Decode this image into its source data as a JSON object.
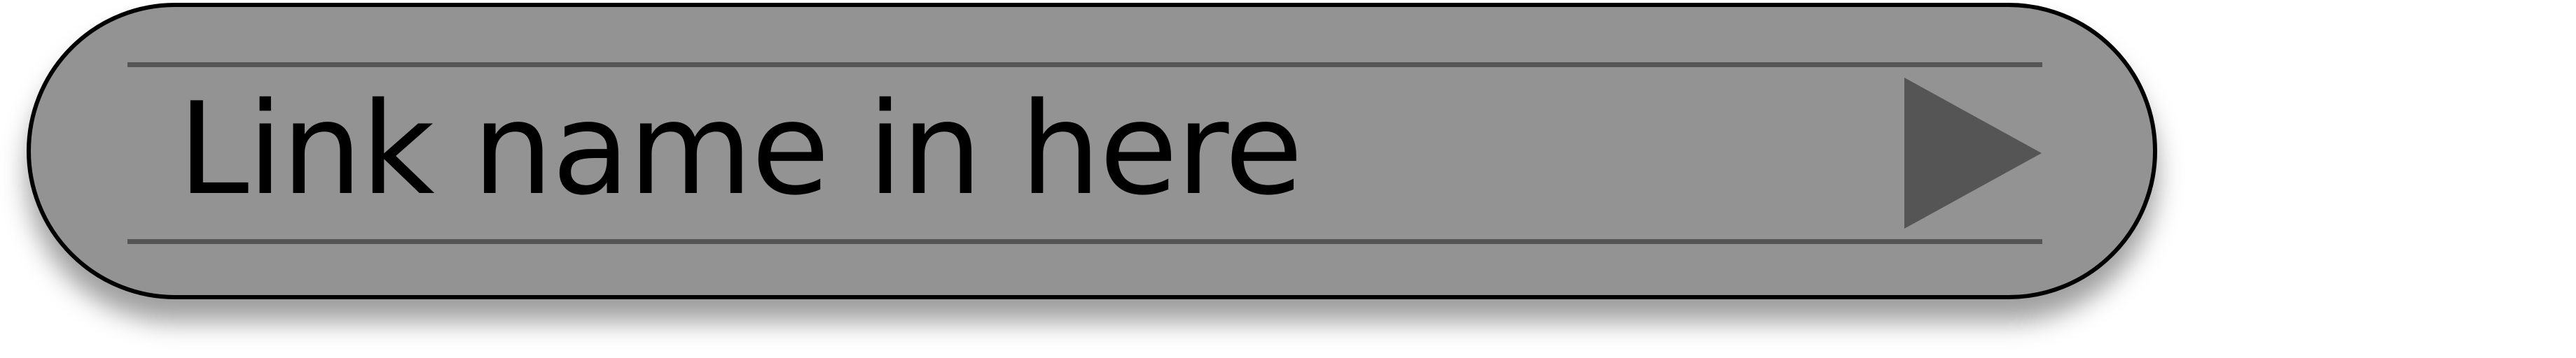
{
  "link": {
    "label": "Link name in here"
  },
  "icons": {
    "arrow": "play-arrow-right-icon"
  },
  "colors": {
    "button_fill": "#939393",
    "border": "#000000",
    "rule": "#555555",
    "arrow": "#555555",
    "text": "#000000"
  }
}
